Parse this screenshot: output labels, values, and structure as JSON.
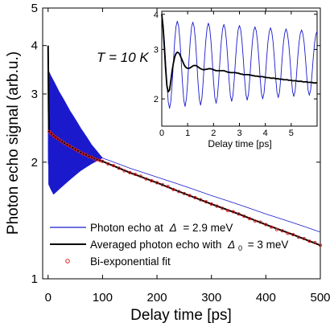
{
  "chart_data": [
    {
      "type": "line",
      "title": "",
      "annotation": "T = 10 K",
      "xlabel": "Delay time [ps]",
      "ylabel": "Photon echo signal (arb.u.)",
      "xlim": [
        -10,
        500
      ],
      "ylim": [
        1,
        5
      ],
      "yscale": "log",
      "xticks": [
        0,
        100,
        200,
        300,
        400,
        500
      ],
      "yticks": [
        1,
        2,
        3,
        4,
        5
      ],
      "legend_position": "bottom-left",
      "legend": [
        {
          "label": "Photon echo at",
          "symbol": "Δ",
          "value": "= 2.9 meV",
          "color": "#1a1acc",
          "style": "line"
        },
        {
          "label": "Averaged photon echo with",
          "symbol": "Δ",
          "sub": "0",
          "value": "= 3 meV",
          "color": "#000000",
          "style": "line"
        },
        {
          "label": "Bi-exponential fit",
          "color": "#dd2222",
          "style": "marker"
        }
      ],
      "series": [
        {
          "name": "Photon echo at Δ = 2.9 meV",
          "color": "#1a1acc",
          "envelope_x": [
            0,
            1,
            5,
            10,
            20,
            40,
            60,
            80,
            100,
            150,
            200,
            300,
            400,
            500
          ],
          "envelope_upper": [
            3.5,
            3.45,
            3.35,
            3.25,
            3.05,
            2.72,
            2.45,
            2.22,
            2.05,
            1.93,
            1.83,
            1.64,
            1.47,
            1.32
          ],
          "envelope_lower": [
            2.1,
            1.75,
            1.7,
            1.65,
            1.7,
            1.8,
            1.9,
            1.98,
            2.05,
            1.93,
            1.83,
            1.64,
            1.47,
            1.32
          ]
        },
        {
          "name": "Averaged photon echo with Δ0 = 3 meV",
          "color": "#000000",
          "x": [
            0,
            0.5,
            1,
            2,
            5,
            10,
            20,
            40,
            60,
            80,
            100,
            150,
            200,
            250,
            300,
            350,
            400,
            450,
            500
          ],
          "y": [
            4.0,
            3.3,
            2.7,
            2.4,
            2.38,
            2.34,
            2.28,
            2.2,
            2.12,
            2.06,
            2.01,
            1.88,
            1.77,
            1.66,
            1.56,
            1.47,
            1.38,
            1.3,
            1.22
          ]
        },
        {
          "name": "Bi-exponential fit",
          "color": "#dd2222",
          "marker": "circle",
          "x": [
            2,
            6,
            10,
            14,
            18,
            22,
            26,
            30,
            35,
            40,
            45,
            50,
            55,
            60,
            65,
            70,
            75,
            80,
            85,
            90,
            95,
            100,
            110,
            120,
            130,
            140,
            150,
            160,
            170,
            180,
            190,
            200,
            210,
            220,
            230,
            240,
            250,
            260,
            270,
            280,
            290,
            300,
            310,
            320,
            330,
            340,
            350,
            360,
            370,
            380,
            390,
            400,
            410,
            420,
            430,
            440,
            450,
            460,
            470,
            480,
            490,
            500
          ],
          "y": [
            2.4,
            2.37,
            2.34,
            2.32,
            2.3,
            2.28,
            2.26,
            2.24,
            2.22,
            2.2,
            2.18,
            2.16,
            2.14,
            2.12,
            2.1,
            2.09,
            2.07,
            2.06,
            2.04,
            2.03,
            2.02,
            2.01,
            1.98,
            1.96,
            1.93,
            1.9,
            1.88,
            1.86,
            1.84,
            1.81,
            1.79,
            1.77,
            1.75,
            1.73,
            1.7,
            1.68,
            1.66,
            1.64,
            1.62,
            1.6,
            1.58,
            1.56,
            1.54,
            1.52,
            1.5,
            1.49,
            1.47,
            1.45,
            1.43,
            1.41,
            1.4,
            1.38,
            1.36,
            1.34,
            1.33,
            1.31,
            1.3,
            1.28,
            1.27,
            1.25,
            1.24,
            1.22
          ]
        }
      ]
    },
    {
      "type": "line",
      "title": "",
      "xlabel": "Delay time [ps]",
      "ylabel": "",
      "xlim": [
        0,
        6
      ],
      "ylim": [
        1.6,
        4.1
      ],
      "yscale": "log",
      "xticks": [
        0,
        1,
        2,
        3,
        4,
        5
      ],
      "yticks": [
        2,
        3,
        4
      ],
      "series": [
        {
          "name": "Photon echo at Δ = 2.9 meV",
          "color": "#1a1acc",
          "x": [
            0,
            0.05,
            0.1,
            0.15,
            0.2,
            0.25,
            0.3,
            0.35,
            0.4,
            0.45,
            0.5,
            0.55,
            0.6,
            0.65,
            0.7,
            0.75,
            0.8,
            0.85,
            0.9,
            0.95,
            1.0,
            1.05,
            1.1,
            1.15,
            1.2,
            1.25,
            1.3,
            1.35,
            1.4,
            1.45,
            1.5,
            1.55,
            1.6,
            1.65,
            1.7,
            1.75,
            1.8,
            1.85,
            1.9,
            1.95,
            2.0,
            2.05,
            2.1,
            2.15,
            2.2,
            2.25,
            2.3,
            2.35,
            2.4,
            2.45,
            2.5,
            2.55,
            2.6,
            2.65,
            2.7,
            2.75,
            2.8,
            2.85,
            2.9,
            2.95,
            3.0,
            3.05,
            3.1,
            3.15,
            3.2,
            3.25,
            3.3,
            3.35,
            3.4,
            3.45,
            3.5,
            3.55,
            3.6,
            3.65,
            3.7,
            3.75,
            3.8,
            3.85,
            3.9,
            3.95,
            4.0,
            4.05,
            4.1,
            4.15,
            4.2,
            4.25,
            4.3,
            4.35,
            4.4,
            4.45,
            4.5,
            4.55,
            4.6,
            4.65,
            4.7,
            4.75,
            4.8,
            4.85,
            4.9,
            4.95,
            5.0,
            5.05,
            5.1,
            5.15,
            5.2,
            5.25,
            5.3,
            5.35,
            5.4,
            5.45,
            5.5,
            5.55,
            5.6,
            5.65,
            5.7,
            5.75,
            5.8,
            5.85,
            5.9,
            5.95,
            6.0
          ],
          "y": [
            4.0,
            3.7,
            3.24,
            2.71,
            2.25,
            1.95,
            1.85,
            1.96,
            2.25,
            2.71,
            3.22,
            3.62,
            3.78,
            3.64,
            3.24,
            2.73,
            2.28,
            1.98,
            1.88,
            2.0,
            2.29,
            2.74,
            3.22,
            3.6,
            3.75,
            3.61,
            3.24,
            2.74,
            2.29,
            2.0,
            1.9,
            2.01,
            2.31,
            2.76,
            3.21,
            3.57,
            3.72,
            3.58,
            3.21,
            2.75,
            2.31,
            2.02,
            1.93,
            2.04,
            2.33,
            2.77,
            3.21,
            3.55,
            3.68,
            3.55,
            3.21,
            2.76,
            2.33,
            2.05,
            1.96,
            2.06,
            2.35,
            2.77,
            3.2,
            3.52,
            3.65,
            3.52,
            3.2,
            2.77,
            2.35,
            2.07,
            1.98,
            2.08,
            2.36,
            2.78,
            3.19,
            3.49,
            3.61,
            3.49,
            3.19,
            2.78,
            2.37,
            2.09,
            2.0,
            2.1,
            2.38,
            2.78,
            3.18,
            3.46,
            3.58,
            3.46,
            3.18,
            2.78,
            2.38,
            2.11,
            2.02,
            2.12,
            2.39,
            2.79,
            3.17,
            3.43,
            3.55,
            3.43,
            3.17,
            2.79,
            2.4,
            2.13,
            2.04,
            2.13,
            2.4,
            2.79,
            3.16,
            3.41,
            3.52,
            3.41,
            3.16,
            2.79,
            2.41,
            2.15,
            2.06,
            2.15,
            2.42,
            2.79,
            3.15,
            3.38,
            3.49
          ]
        },
        {
          "name": "Averaged photon echo with Δ0 = 3 meV",
          "color": "#000000",
          "x": [
            0,
            0.05,
            0.1,
            0.15,
            0.2,
            0.25,
            0.3,
            0.35,
            0.4,
            0.45,
            0.5,
            0.55,
            0.6,
            0.65,
            0.7,
            0.75,
            0.8,
            0.85,
            0.9,
            0.95,
            1.0,
            1.05,
            1.1,
            1.15,
            1.2,
            1.25,
            1.3,
            1.35,
            1.4,
            1.45,
            1.5,
            1.55,
            1.6,
            1.65,
            1.7,
            1.75,
            1.8,
            1.85,
            1.9,
            1.95,
            2.0,
            2.05,
            2.1,
            2.15,
            2.2,
            2.25,
            2.3,
            2.35,
            2.4,
            2.45,
            2.5,
            2.55,
            2.6,
            2.65,
            2.7,
            2.75,
            2.8,
            2.85,
            2.9,
            2.95,
            3.0,
            3.05,
            3.1,
            3.15,
            3.2,
            3.25,
            3.3,
            3.35,
            3.4,
            3.45,
            3.5,
            3.55,
            3.6,
            3.65,
            3.7,
            3.75,
            3.8,
            3.85,
            3.9,
            3.95,
            4.0,
            4.05,
            4.1,
            4.15,
            4.2,
            4.25,
            4.3,
            4.35,
            4.4,
            4.45,
            4.5,
            4.55,
            4.6,
            4.65,
            4.7,
            4.75,
            4.8,
            4.85,
            4.9,
            4.95,
            5.0,
            5.05,
            5.1,
            5.15,
            5.2,
            5.25,
            5.3,
            5.35,
            5.4,
            5.45,
            5.5,
            5.55,
            5.6,
            5.65,
            5.7,
            5.75,
            5.8,
            5.85,
            5.9,
            5.95,
            6.0
          ],
          "y": [
            4.0,
            3.6,
            3.05,
            2.55,
            2.22,
            2.12,
            2.15,
            2.32,
            2.52,
            2.68,
            2.82,
            2.9,
            2.93,
            2.92,
            2.87,
            2.8,
            2.73,
            2.66,
            2.61,
            2.58,
            2.57,
            2.57,
            2.58,
            2.6,
            2.62,
            2.63,
            2.63,
            2.62,
            2.6,
            2.58,
            2.56,
            2.55,
            2.54,
            2.54,
            2.55,
            2.55,
            2.56,
            2.56,
            2.56,
            2.55,
            2.54,
            2.53,
            2.52,
            2.52,
            2.52,
            2.52,
            2.52,
            2.52,
            2.52,
            2.51,
            2.5,
            2.49,
            2.49,
            2.48,
            2.48,
            2.48,
            2.48,
            2.48,
            2.47,
            2.47,
            2.46,
            2.45,
            2.45,
            2.44,
            2.44,
            2.44,
            2.44,
            2.44,
            2.43,
            2.43,
            2.42,
            2.42,
            2.41,
            2.41,
            2.41,
            2.4,
            2.4,
            2.4,
            2.4,
            2.39,
            2.39,
            2.38,
            2.38,
            2.38,
            2.37,
            2.37,
            2.37,
            2.37,
            2.36,
            2.36,
            2.36,
            2.35,
            2.35,
            2.35,
            2.34,
            2.34,
            2.34,
            2.34,
            2.33,
            2.33,
            2.33,
            2.32,
            2.32,
            2.32,
            2.32,
            2.31,
            2.31,
            2.31,
            2.31,
            2.3,
            2.3,
            2.3,
            2.3,
            2.29,
            2.29,
            2.29,
            2.29,
            2.28,
            2.28,
            2.28,
            2.28
          ]
        }
      ]
    }
  ]
}
